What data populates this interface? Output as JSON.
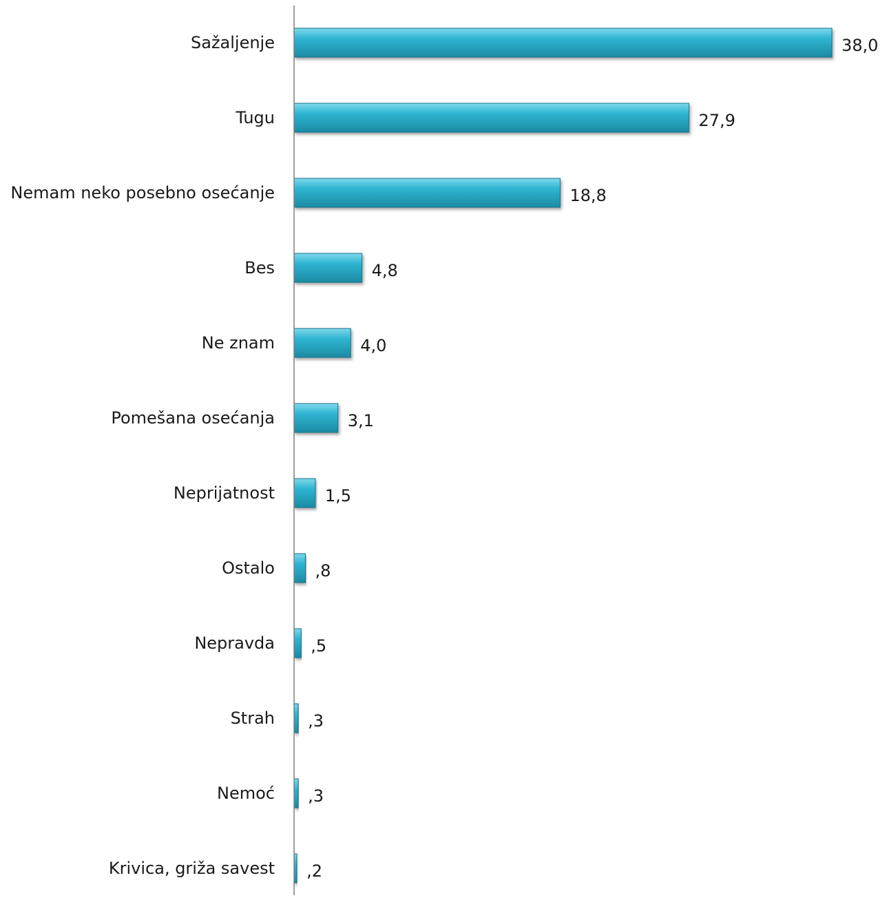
{
  "chart_data": {
    "type": "bar",
    "orientation": "horizontal",
    "title": "",
    "xlabel": "",
    "ylabel": "",
    "grid": false,
    "legend": "none",
    "xlim": [
      0,
      38
    ],
    "categories": [
      "Sažaljenje",
      "Tugu",
      "Nemam neko posebno osećanje",
      "Bes",
      "Ne znam",
      "Pomešana osećanja",
      "Neprijatnost",
      "Ostalo",
      "Nepravda",
      "Strah",
      "Nemoć",
      "Krivica, griža savest"
    ],
    "values": [
      38.0,
      27.9,
      18.8,
      4.8,
      4.0,
      3.1,
      1.5,
      0.8,
      0.5,
      0.3,
      0.3,
      0.2
    ],
    "value_labels": [
      "38,0",
      "27,9",
      "18,8",
      "4,8",
      "4,0",
      "3,1",
      "1,5",
      ",8",
      ",5",
      ",3",
      ",3",
      ",2"
    ],
    "colors": {
      "bar_top": "#7fd9ec",
      "bar_mid": "#2fb5d2",
      "bar_bottom": "#1c8aa3",
      "bar_edge": "#15708a",
      "axis": "#7f7f7f"
    }
  }
}
